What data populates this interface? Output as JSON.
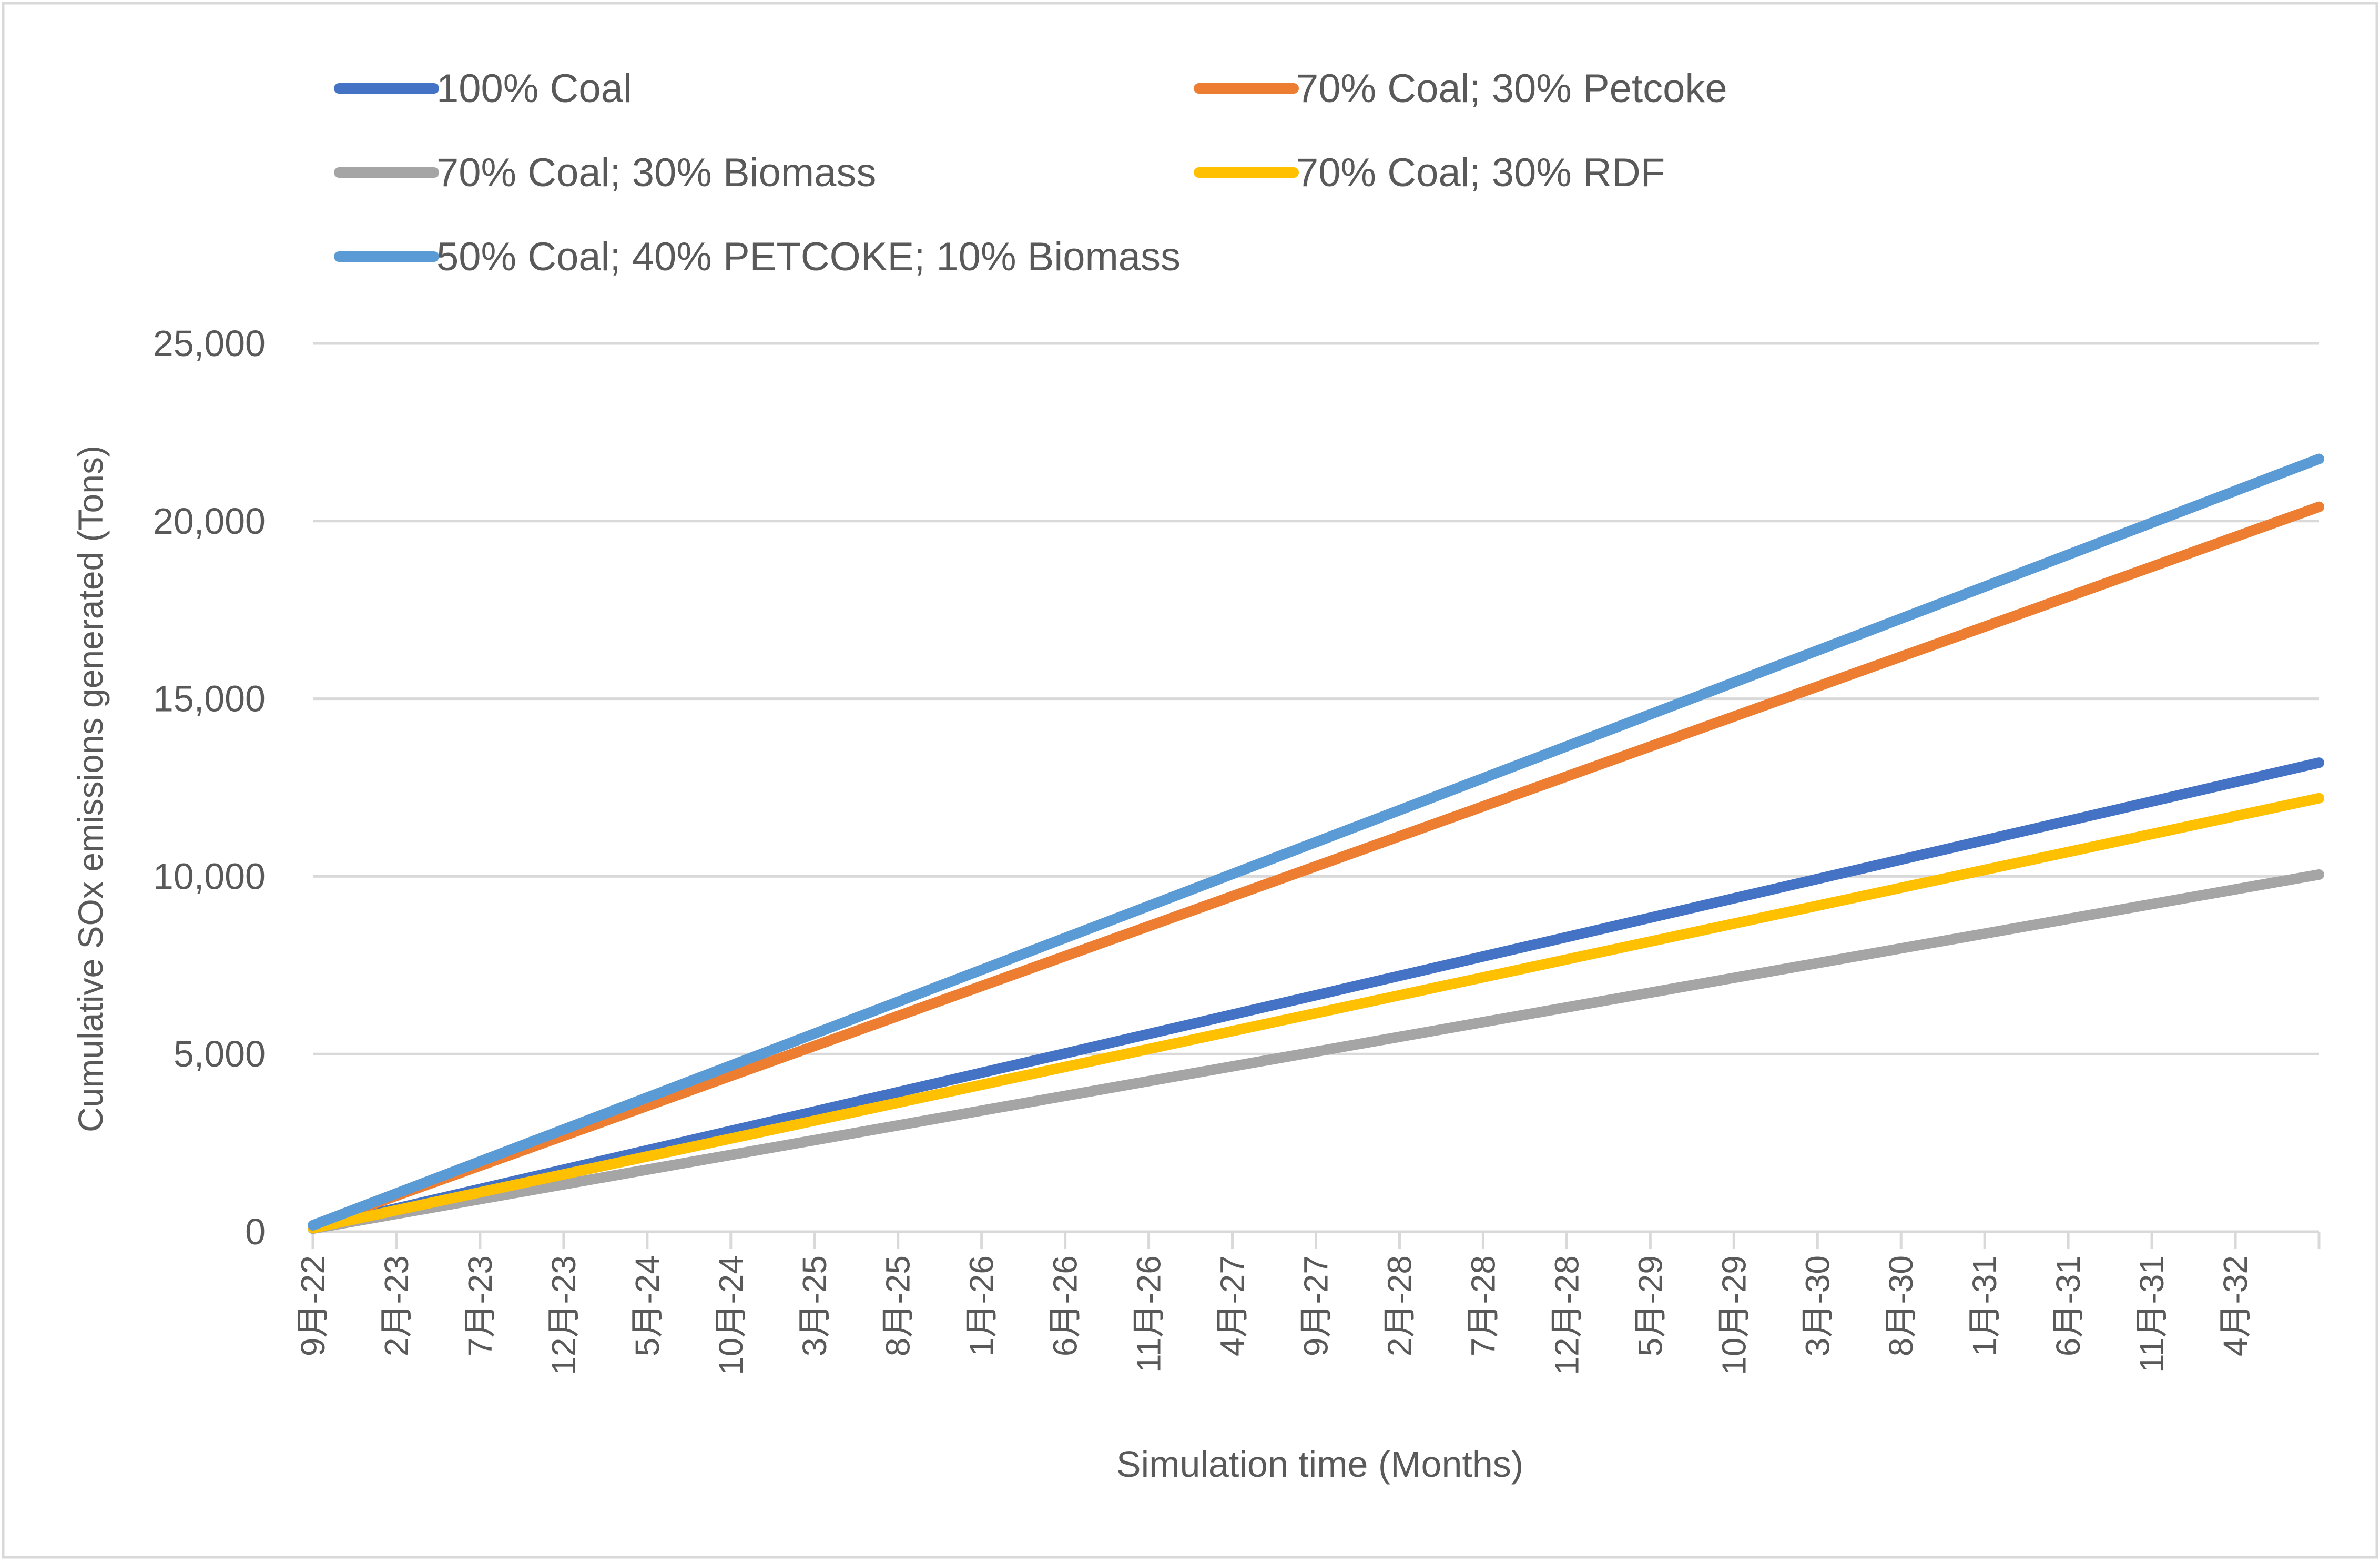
{
  "chart_data": {
    "type": "line",
    "title": "",
    "xlabel": "Simulation time (Months)",
    "ylabel": "Cumulative SOx emissions generated (Tons)",
    "ylim": [
      0,
      25000
    ],
    "yticks": [
      0,
      5000,
      10000,
      15000,
      20000,
      25000
    ],
    "ytick_labels": [
      "0",
      "5,000",
      "10,000",
      "15,000",
      "20,000",
      "25,000"
    ],
    "grid": true,
    "legend_position": "top",
    "x_months": 120,
    "x_tick_labels": [
      "9月-22",
      "2月-23",
      "7月-23",
      "12月-23",
      "5月-24",
      "10月-24",
      "3月-25",
      "8月-25",
      "1月-26",
      "6月-26",
      "11月-26",
      "4月-27",
      "9月-27",
      "2月-28",
      "7月-28",
      "12月-28",
      "5月-29",
      "10月-29",
      "3月-30",
      "8月-30",
      "1月-31",
      "6月-31",
      "11月-31",
      "4月-32"
    ],
    "series": [
      {
        "name": "100% Coal",
        "color": "#4472C4",
        "start": 110,
        "end": 13200
      },
      {
        "name": "70% Coal; 30% Petcoke",
        "color": "#ED7D31",
        "start": 170,
        "end": 20400
      },
      {
        "name": "70% Coal; 30% Biomass",
        "color": "#A5A5A5",
        "start": 85,
        "end": 10050
      },
      {
        "name": "70% Coal; 30% RDF",
        "color": "#FFC000",
        "start": 100,
        "end": 12200
      },
      {
        "name": "50% Coal; 40% PETCOKE; 10% Biomass",
        "color": "#5B9BD5",
        "start": 180,
        "end": 21750
      }
    ]
  }
}
